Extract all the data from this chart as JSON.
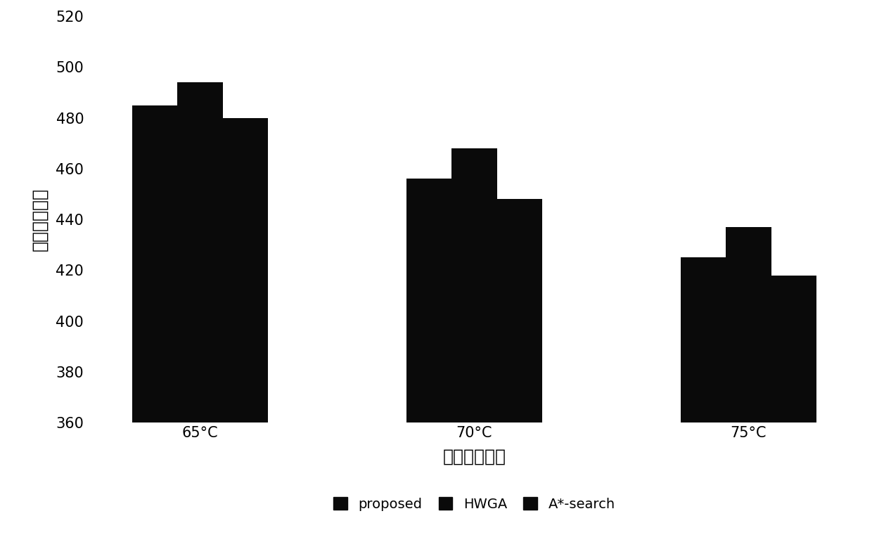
{
  "categories": [
    "65°C",
    "70°C",
    "75°C"
  ],
  "series": {
    "proposed": [
      485,
      456,
      425
    ],
    "HWGA": [
      494,
      468,
      437
    ],
    "A*-search": [
      480,
      448,
      418
    ]
  },
  "bar_color": "#0a0a0a",
  "ylabel": "平均能量消耗",
  "xlabel": "最高温度约束",
  "ylim": [
    360,
    520
  ],
  "yticks": [
    360,
    380,
    400,
    420,
    440,
    460,
    480,
    500,
    520
  ],
  "bar_width": 0.28,
  "legend_labels": [
    "proposed",
    "HWGA",
    "A*-search"
  ],
  "background_color": "#ffffff",
  "axis_fontsize": 18,
  "tick_fontsize": 15,
  "legend_fontsize": 14,
  "ylabel_fontsize": 18
}
